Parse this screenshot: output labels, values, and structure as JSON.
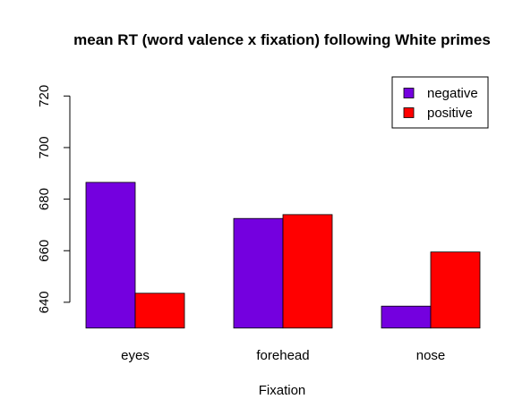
{
  "chart_data": {
    "type": "bar",
    "title": "mean RT (word valence x fixation) following White primes",
    "xlabel": "Fixation",
    "ylabel": "",
    "categories": [
      "eyes",
      "forehead",
      "nose"
    ],
    "series": [
      {
        "name": "negative",
        "color": "#7400DF",
        "values": [
          686.5,
          672.5,
          638.5
        ]
      },
      {
        "name": "positive",
        "color": "#FF0000",
        "values": [
          643.5,
          674.0,
          659.5
        ]
      }
    ],
    "ylim": [
      630,
      720
    ],
    "yticks": [
      640,
      660,
      680,
      700,
      720
    ],
    "bar_base": 630,
    "grid": false,
    "legend_position": "top-right"
  }
}
